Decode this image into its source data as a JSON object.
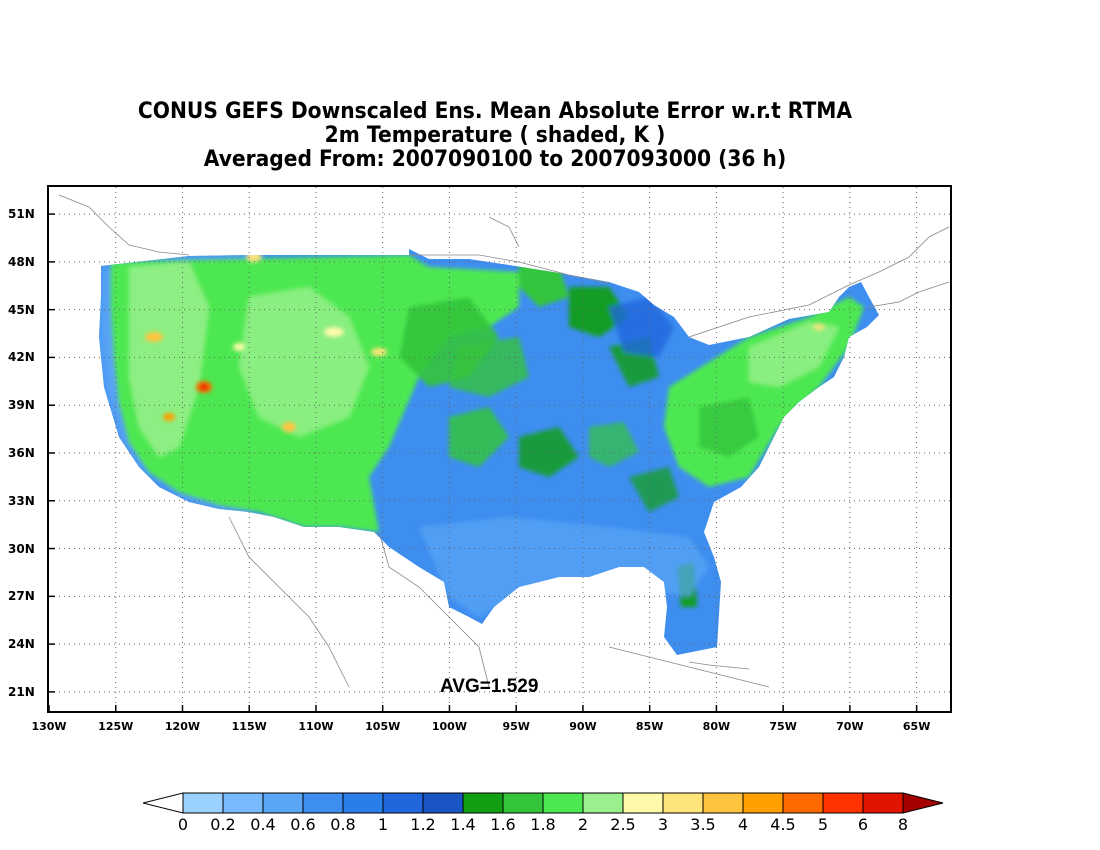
{
  "titles": {
    "line1": "CONUS GEFS Downscaled Ens. Mean Absolute Error w.r.t RTMA",
    "line2": "2m Temperature ( shaded, K )",
    "line3": "Averaged From: 2007090100 to 2007093000 (36 h)"
  },
  "map": {
    "lat_labels": [
      "51N",
      "48N",
      "45N",
      "42N",
      "39N",
      "36N",
      "33N",
      "30N",
      "27N",
      "24N",
      "21N"
    ],
    "lat_values": [
      51,
      48,
      45,
      42,
      39,
      36,
      33,
      30,
      27,
      24,
      21
    ],
    "lon_labels": [
      "130W",
      "125W",
      "120W",
      "115W",
      "110W",
      "105W",
      "100W",
      "95W",
      "90W",
      "85W",
      "80W",
      "75W",
      "70W",
      "65W"
    ],
    "lon_values": [
      -130,
      -125,
      -120,
      -115,
      -110,
      -105,
      -100,
      -95,
      -90,
      -85,
      -80,
      -75,
      -70,
      -65
    ],
    "lon_range": [
      -130,
      -62.5
    ],
    "lat_range": [
      19.8,
      52.7
    ],
    "grid": "dotted",
    "avg_text": "AVG=1.529"
  },
  "colorbar": {
    "labels": [
      "0",
      "0.2",
      "0.4",
      "0.6",
      "0.8",
      "1",
      "1.2",
      "1.4",
      "1.6",
      "1.8",
      "2",
      "2.5",
      "3",
      "3.5",
      "4",
      "4.5",
      "5",
      "6",
      "8"
    ],
    "colors": [
      "#9bd1ff",
      "#78b9fb",
      "#5aa5f5",
      "#3e8ef0",
      "#2a7ee8",
      "#2266dd",
      "#1a55c4",
      "#139f13",
      "#34c43c",
      "#4de851",
      "#99f08c",
      "#fffaaa",
      "#ffe47a",
      "#ffc43f",
      "#ff9f00",
      "#ff6a00",
      "#ff3200",
      "#e11400",
      "#a50000"
    ],
    "under_color": "#ffffff"
  }
}
